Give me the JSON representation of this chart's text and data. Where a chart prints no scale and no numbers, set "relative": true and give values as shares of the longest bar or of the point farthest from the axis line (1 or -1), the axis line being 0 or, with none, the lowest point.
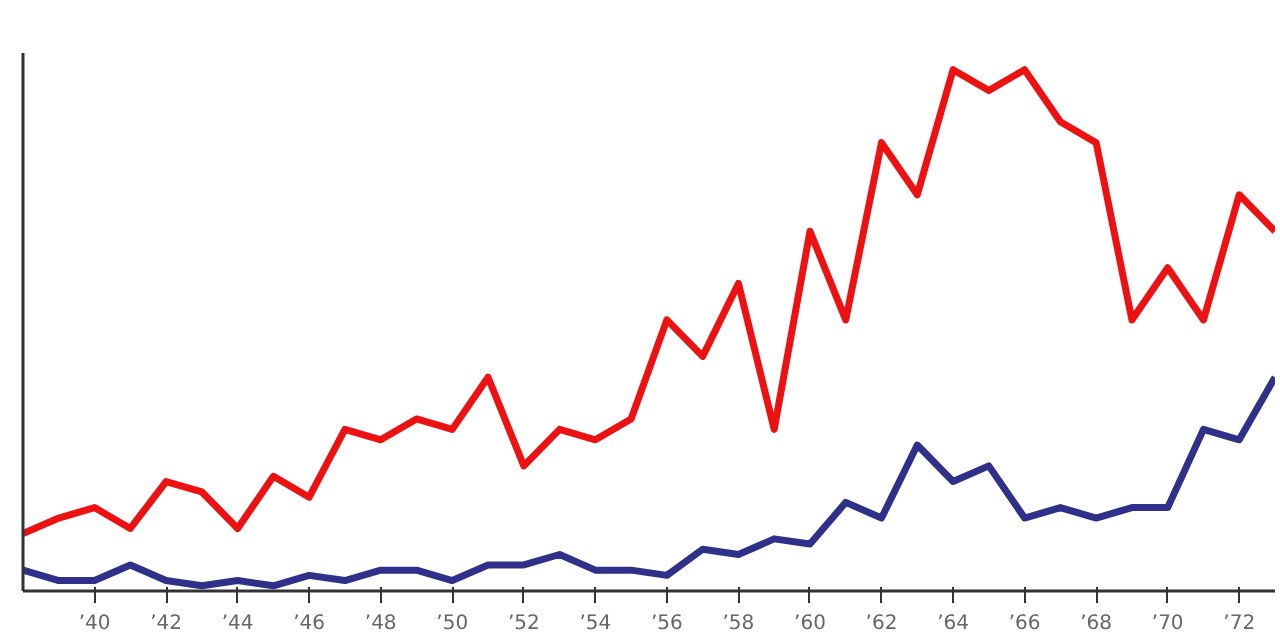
{
  "chart_data": {
    "type": "line",
    "relative": true,
    "x": [
      1938,
      1939,
      1940,
      1941,
      1942,
      1943,
      1944,
      1945,
      1946,
      1947,
      1948,
      1949,
      1950,
      1951,
      1952,
      1953,
      1954,
      1955,
      1956,
      1957,
      1958,
      1959,
      1960,
      1961,
      1962,
      1963,
      1964,
      1965,
      1966,
      1967,
      1968,
      1969,
      1970,
      1971,
      1972,
      1973
    ],
    "xlim": [
      1938,
      1973
    ],
    "xticks": [
      {
        "value": 1940,
        "label": "’40"
      },
      {
        "value": 1942,
        "label": "’42"
      },
      {
        "value": 1944,
        "label": "’44"
      },
      {
        "value": 1946,
        "label": "’46"
      },
      {
        "value": 1948,
        "label": "’48"
      },
      {
        "value": 1950,
        "label": "’50"
      },
      {
        "value": 1952,
        "label": "’52"
      },
      {
        "value": 1954,
        "label": "’54"
      },
      {
        "value": 1956,
        "label": "’56"
      },
      {
        "value": 1958,
        "label": "’58"
      },
      {
        "value": 1960,
        "label": "’60"
      },
      {
        "value": 1962,
        "label": "’62"
      },
      {
        "value": 1964,
        "label": "’64"
      },
      {
        "value": 1966,
        "label": "’66"
      },
      {
        "value": 1968,
        "label": "’68"
      },
      {
        "value": 1970,
        "label": "’70"
      },
      {
        "value": 1972,
        "label": "’72"
      }
    ],
    "series": [
      {
        "color": "#ee1111",
        "values": [
          0.11,
          0.14,
          0.16,
          0.12,
          0.21,
          0.19,
          0.12,
          0.22,
          0.18,
          0.31,
          0.29,
          0.33,
          0.31,
          0.41,
          0.24,
          0.31,
          0.29,
          0.33,
          0.52,
          0.45,
          0.59,
          0.31,
          0.69,
          0.52,
          0.86,
          0.76,
          1,
          0.96,
          1,
          0.9,
          0.86,
          0.52,
          0.62,
          0.52,
          0.76,
          0.69
        ]
      },
      {
        "color": "#2e3089",
        "values": [
          0.04,
          0.02,
          0.02,
          0.05,
          0.02,
          0.01,
          0.02,
          0.01,
          0.03,
          0.02,
          0.04,
          0.04,
          0.02,
          0.05,
          0.05,
          0.07,
          0.04,
          0.04,
          0.03,
          0.08,
          0.07,
          0.1,
          0.09,
          0.17,
          0.14,
          0.28,
          0.21,
          0.24,
          0.14,
          0.16,
          0.14,
          0.16,
          0.16,
          0.31,
          0.29,
          0.41
        ]
      }
    ],
    "line_style": "solid"
  }
}
